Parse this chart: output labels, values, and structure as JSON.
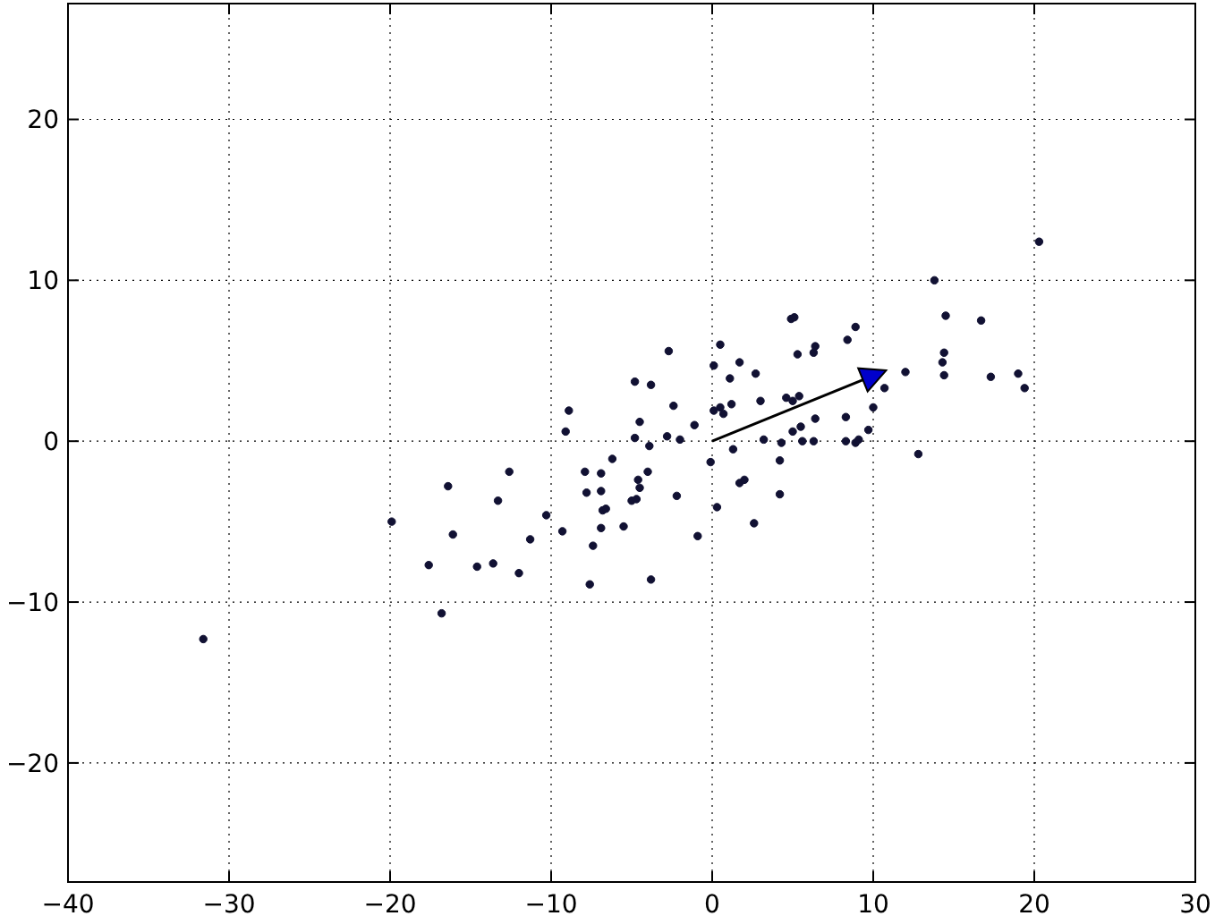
{
  "chart_data": {
    "type": "scatter",
    "xlim": [
      -40,
      30
    ],
    "ylim": [
      -27.4,
      27.2
    ],
    "xticks": [
      {
        "value": -40,
        "label": "−40"
      },
      {
        "value": -30,
        "label": "−30"
      },
      {
        "value": -20,
        "label": "−20"
      },
      {
        "value": -10,
        "label": "−10"
      },
      0,
      10,
      20,
      30
    ],
    "yticks": [
      {
        "value": -20,
        "label": "−20"
      },
      {
        "value": -10,
        "label": "−10"
      },
      0,
      10,
      20
    ],
    "grid": true,
    "marker": "circle",
    "series": [
      {
        "color": "#111133",
        "x": [
          -31.6,
          -19.9,
          -17.6,
          -16.8,
          -16.4,
          -16.1,
          -14.6,
          -13.6,
          -13.3,
          -12.6,
          -12,
          -11.3,
          -10.3,
          -9.3,
          -9.1,
          -8.9,
          -7.9,
          -7.8,
          -6.9,
          -6.9,
          -6.2,
          -6.8,
          -6.6,
          -6.9,
          -7.4,
          -7.6,
          -5.5,
          -5.0,
          -4.7,
          -4.6,
          -4.5,
          -4.0,
          -3.9,
          -4.8,
          -4.5,
          -4.8,
          -3.8,
          -2.7,
          -2.4,
          -2.8,
          -2.0,
          -2.2,
          -3.8,
          -1.1,
          -0.9,
          -0.1,
          0.3,
          0.1,
          0.1,
          0.5,
          0.5,
          0.7,
          1.2,
          1.1,
          1.7,
          1.3,
          1.7,
          2.0,
          2.6,
          2.7,
          3.0,
          3.2,
          4.3,
          4.2,
          4.2,
          4.6,
          5.0,
          5.4,
          4.9,
          5.1,
          5.3,
          5.5,
          5.0,
          5.6,
          6.3,
          6.4,
          6.4,
          6.3,
          8.3,
          8.3,
          8.9,
          9.1,
          8.4,
          8.9,
          9.7,
          10.0,
          20.3,
          13.8,
          14.5,
          16.7,
          14.4,
          14.3,
          14.4,
          12.0,
          17.3,
          19.0,
          19.4,
          10.7,
          12.8
        ],
        "values": [
          -12.3,
          -5.0,
          -7.7,
          -10.7,
          -2.8,
          -5.8,
          -7.8,
          -7.6,
          -3.7,
          -1.9,
          -8.2,
          -6.1,
          -4.6,
          -5.6,
          0.6,
          1.9,
          -1.9,
          -3.2,
          -2.0,
          -3.1,
          -1.1,
          -4.3,
          -4.2,
          -5.4,
          -6.5,
          -8.9,
          -5.3,
          -3.7,
          -3.6,
          -2.4,
          -2.9,
          -1.9,
          -0.3,
          0.2,
          1.2,
          3.7,
          3.5,
          5.6,
          2.2,
          0.3,
          0.1,
          -3.4,
          -8.6,
          1.0,
          -5.9,
          -1.3,
          -4.1,
          1.9,
          4.7,
          6.0,
          2.1,
          1.7,
          2.3,
          3.9,
          4.9,
          -0.5,
          -2.6,
          -2.4,
          -5.1,
          4.2,
          2.5,
          0.1,
          -0.1,
          -1.2,
          -3.3,
          2.7,
          2.5,
          2.8,
          7.6,
          7.7,
          5.4,
          0.9,
          0.6,
          0.0,
          5.5,
          5.9,
          1.4,
          0.0,
          1.5,
          0.0,
          -0.1,
          0.1,
          6.3,
          7.1,
          0.7,
          2.1,
          12.4,
          10.0,
          7.8,
          7.5,
          5.5,
          4.9,
          4.1,
          4.3,
          4.0,
          4.2,
          3.3,
          3.3,
          -0.8
        ]
      }
    ]
  }
}
